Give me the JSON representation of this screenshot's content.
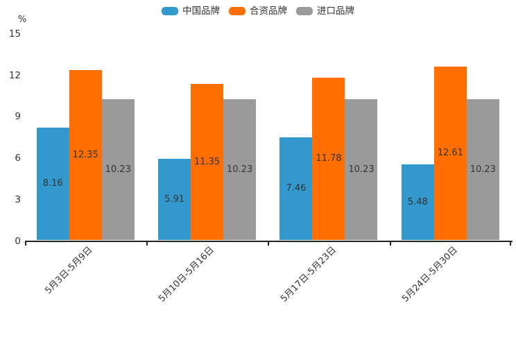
{
  "chart_data": {
    "type": "bar",
    "title": "",
    "unit": "%",
    "categories": [
      "5月3日-5月9日",
      "5月10日-5月16日",
      "5月17日-5月23日",
      "5月24日-5月30日"
    ],
    "series": [
      {
        "name": "中国品牌",
        "color": "#3398cc",
        "values": [
          8.16,
          5.91,
          7.46,
          5.48
        ]
      },
      {
        "name": "合资品牌",
        "color": "#ff6e00",
        "values": [
          12.35,
          11.35,
          11.78,
          12.61
        ]
      },
      {
        "name": "进口品牌",
        "color": "#9a9a9a",
        "values": [
          10.23,
          10.23,
          10.23,
          10.23
        ]
      }
    ],
    "ylim": [
      0,
      15
    ],
    "yticks": [
      0,
      3,
      6,
      9,
      12,
      15
    ],
    "legend_position": "top",
    "grid": false,
    "bar_labels": true,
    "bar_label_position": "middle",
    "xlabel_rotation": -45,
    "text_color": "#333333",
    "axis_color": "#222222"
  }
}
